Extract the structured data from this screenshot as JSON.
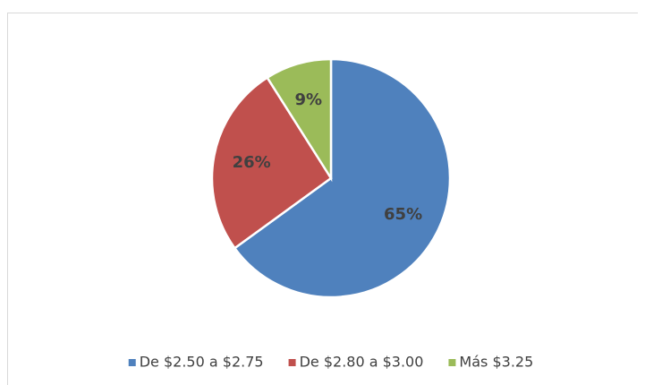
{
  "chart_data": {
    "type": "pie",
    "categories": [
      "De $2.50 a $2.75",
      "De $2.80 a $3.00",
      "Más $3.25"
    ],
    "values": [
      65,
      26,
      9
    ],
    "value_labels": [
      "65%",
      "26%",
      "9%"
    ],
    "colors": [
      "#4f81bd",
      "#c0504d",
      "#9bbb59"
    ],
    "legend": "bottom"
  }
}
